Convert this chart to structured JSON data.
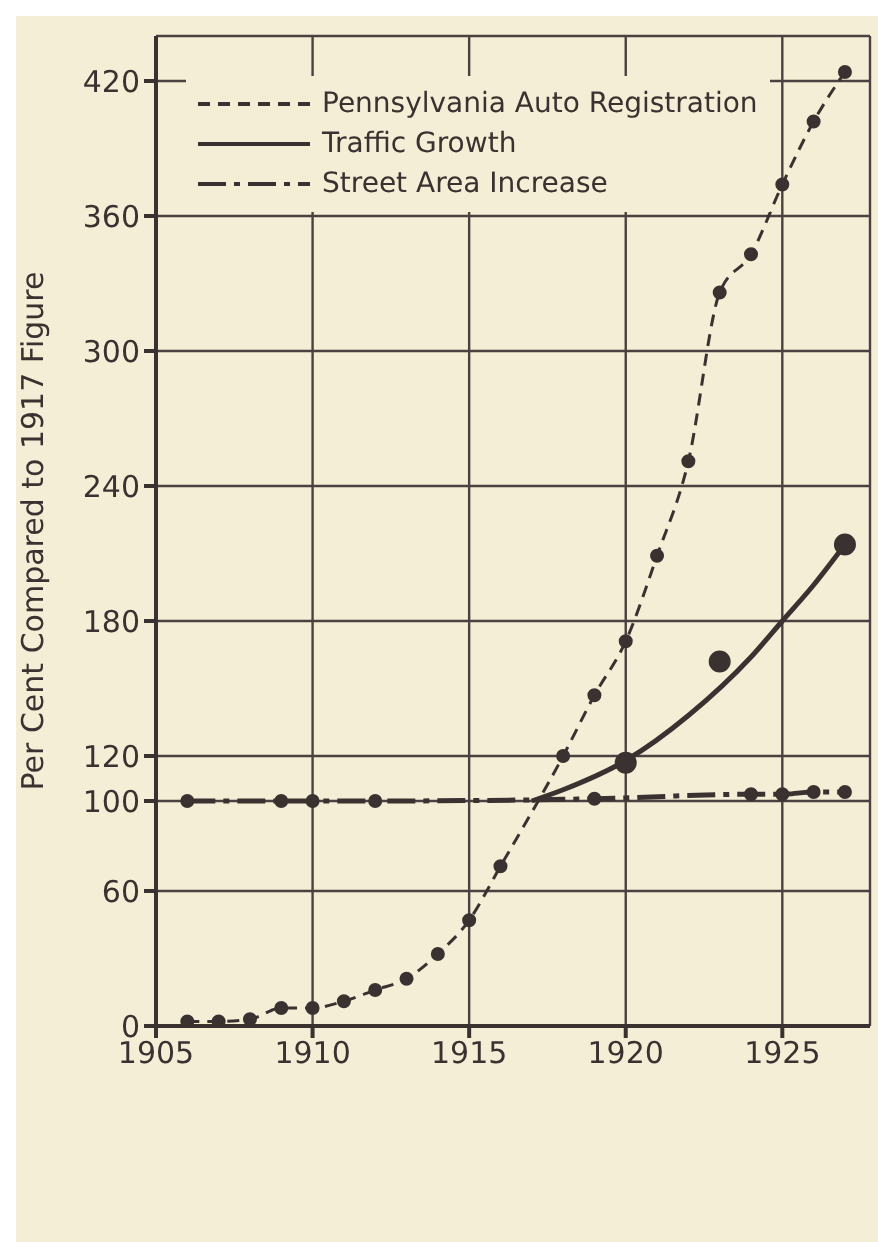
{
  "chart_data": {
    "type": "line",
    "ylabel": "Per Cent Compared to 1917 Figure",
    "xlim": [
      1905,
      1927.8
    ],
    "xticks": [
      1905,
      1910,
      1915,
      1920,
      1925
    ],
    "ylim": [
      0,
      440
    ],
    "yticks": [
      0,
      60,
      100,
      120,
      180,
      240,
      300,
      360,
      420
    ],
    "grid": true,
    "legend": "top left",
    "series": [
      {
        "name": "Pennsylvania Auto Registration",
        "color": "#3a3230",
        "line_style": "dashed",
        "marker": "circle",
        "x": [
          1906,
          1907,
          1908,
          1909,
          1910,
          1911,
          1912,
          1913,
          1914,
          1915,
          1916,
          1918,
          1919,
          1920,
          1921,
          1922,
          1923,
          1924,
          1925,
          1926,
          1927
        ],
        "values": [
          2,
          2,
          3,
          8,
          8,
          11,
          16,
          21,
          32,
          47,
          71,
          120,
          147,
          171,
          209,
          251,
          326,
          343,
          374,
          402,
          424
        ]
      },
      {
        "name": "Traffic Growth",
        "color": "#3a3230",
        "line_style": "solid",
        "marker": "none",
        "x": [
          1917,
          1918,
          1920,
          1922,
          1924,
          1925,
          1926,
          1927
        ],
        "values": [
          100,
          105,
          118,
          138,
          164,
          180,
          196,
          214
        ]
      },
      {
        "type": "scatter",
        "color": "#3a3230",
        "marker": "circle",
        "x": [
          1920,
          1923,
          1927
        ],
        "values": [
          117,
          162,
          214
        ]
      },
      {
        "name": "Street Area Increase",
        "color": "#3a3230",
        "line_style": "dashdot",
        "marker": "circle",
        "x": [
          1906,
          1909,
          1910,
          1912,
          1919,
          1924,
          1925,
          1926,
          1927
        ],
        "values": [
          100,
          100,
          100,
          100,
          101,
          103,
          103,
          104,
          104
        ]
      }
    ]
  }
}
